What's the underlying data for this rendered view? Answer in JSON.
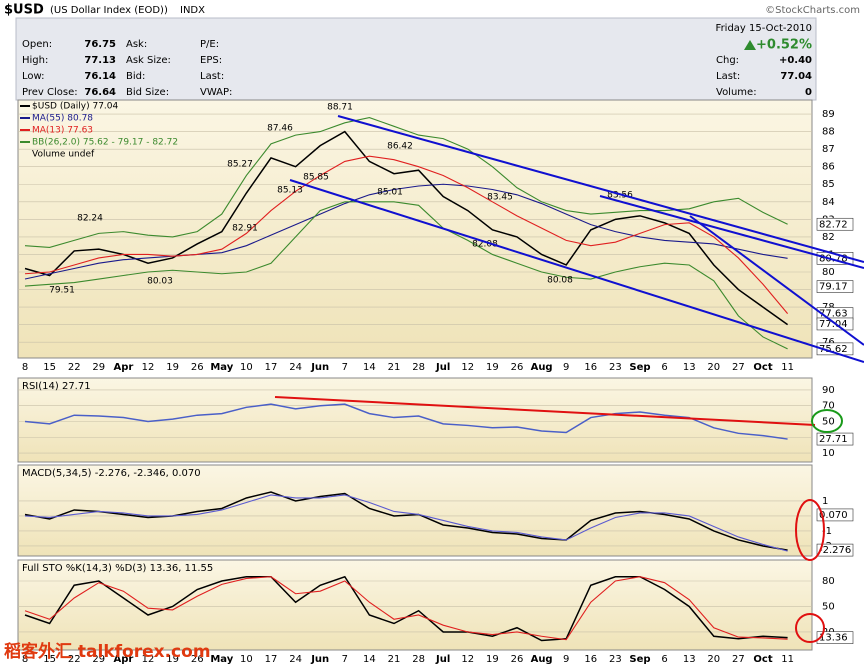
{
  "header": {
    "symbol": "$USD",
    "name": "(US Dollar Index (EOD))",
    "exchange": "INDX",
    "credit": "©StockCharts.com",
    "date": "Friday  15-Oct-2010",
    "change_pct": "+0.52%",
    "col1_labels": [
      "Open:",
      "High:",
      "Low:",
      "Prev Close:"
    ],
    "col1_values": [
      76.75,
      77.13,
      76.14,
      76.64
    ],
    "col2_labels": [
      "Ask:",
      "Ask Size:",
      "Bid:",
      "Bid Size:"
    ],
    "col3_labels": [
      "P/E:",
      "EPS:",
      "Last:",
      "VWAP:"
    ],
    "right_labels": [
      "Chg:",
      "Last:",
      "Volume:"
    ],
    "right_values": [
      "+0.40",
      77.04,
      0
    ]
  },
  "watermark": "稻客外汇 talkforex.com",
  "chart_data": [
    {
      "type": "line",
      "legend_extra": "Volume undef",
      "categories": [
        "8",
        "15",
        "22",
        "29",
        "Apr",
        "12",
        "19",
        "26",
        "May",
        "10",
        "17",
        "24",
        "Jun",
        "7",
        "14",
        "21",
        "28",
        "Jul",
        "12",
        "19",
        "26",
        "Aug",
        "9",
        "16",
        "23",
        "Sep",
        "6",
        "13",
        "20",
        "27",
        "Oct",
        "11"
      ],
      "ylim": [
        75.1,
        89.8
      ],
      "yticks": [
        76,
        77,
        78,
        79,
        80,
        81,
        82,
        83,
        84,
        85,
        86,
        87,
        88,
        89
      ],
      "grid": true,
      "series": [
        {
          "name": "$USD (Daily) 77.04",
          "color": "#000000",
          "values": [
            80.2,
            79.8,
            81.2,
            81.3,
            81.0,
            80.5,
            80.8,
            81.6,
            82.3,
            84.5,
            86.5,
            86.0,
            87.2,
            88.0,
            86.3,
            85.6,
            85.8,
            84.3,
            83.5,
            82.4,
            82.0,
            81.0,
            80.4,
            82.4,
            83.0,
            83.2,
            82.8,
            82.2,
            80.4,
            79.0,
            78.0,
            77.0
          ]
        },
        {
          "name": "MA(55) 80.78",
          "color": "#1a1a8c",
          "values": [
            79.6,
            79.9,
            80.2,
            80.5,
            80.7,
            80.8,
            80.9,
            81.0,
            81.1,
            81.5,
            82.1,
            82.7,
            83.3,
            83.9,
            84.4,
            84.7,
            84.9,
            85.0,
            84.9,
            84.7,
            84.4,
            83.9,
            83.3,
            82.7,
            82.3,
            82.0,
            81.8,
            81.7,
            81.6,
            81.3,
            81.0,
            80.78
          ]
        },
        {
          "name": "MA(13) 77.63",
          "color": "#e02020",
          "values": [
            79.9,
            80.0,
            80.4,
            80.8,
            81.0,
            81.0,
            80.9,
            81.0,
            81.3,
            82.2,
            83.5,
            84.6,
            85.5,
            86.3,
            86.6,
            86.4,
            86.0,
            85.5,
            84.8,
            84.0,
            83.2,
            82.5,
            81.8,
            81.5,
            81.7,
            82.2,
            82.7,
            82.8,
            82.0,
            80.8,
            79.3,
            77.63
          ]
        },
        {
          "name": "BB(26,2.0) 75.62 - 79.17 - 82.72",
          "color": "#3c8a2e",
          "values": [
            81.5,
            81.4,
            81.8,
            82.2,
            82.3,
            82.1,
            82.0,
            82.3,
            83.3,
            85.5,
            87.3,
            87.8,
            88.0,
            88.5,
            88.8,
            88.3,
            87.8,
            87.6,
            87.0,
            86.0,
            84.8,
            84.0,
            83.5,
            83.3,
            83.4,
            83.5,
            83.5,
            83.6,
            84.0,
            84.2,
            83.4,
            82.72
          ]
        },
        {
          "color": "#3c8a2e",
          "values": [
            79.2,
            79.3,
            79.4,
            79.6,
            79.8,
            80.0,
            80.1,
            80.0,
            79.9,
            80.0,
            80.5,
            82.0,
            83.5,
            84.0,
            84.0,
            84.0,
            83.8,
            82.5,
            81.8,
            81.0,
            80.5,
            80.0,
            79.7,
            79.6,
            80.0,
            80.3,
            80.5,
            80.4,
            79.5,
            77.5,
            76.3,
            75.62
          ]
        }
      ],
      "end_labels": [
        82.72,
        80.78,
        79.17,
        77.63,
        77.04,
        75.62
      ],
      "annotations": [
        "88.71",
        "87.46",
        "85.27",
        "85.13",
        "85.85",
        "86.42",
        "85.01",
        "83.45",
        "82.08",
        "83.56",
        "80.08",
        "82.91",
        "82.24",
        "79.51",
        "80.03"
      ]
    },
    {
      "type": "line",
      "legend": "RSI(14) 27.71",
      "ylim": [
        -1.4,
        105.2
      ],
      "yticks": [
        10,
        30,
        50,
        70,
        90
      ],
      "grid": true,
      "series": [
        {
          "color": "#4a5fc8",
          "values": [
            50,
            47,
            58,
            57,
            55,
            50,
            53,
            58,
            60,
            68,
            72,
            66,
            70,
            72,
            60,
            55,
            57,
            47,
            45,
            42,
            43,
            38,
            36,
            55,
            60,
            62,
            58,
            55,
            42,
            35,
            32,
            27.71
          ]
        }
      ],
      "end_labels": [
        27.71
      ]
    },
    {
      "type": "line",
      "legend": "MACD(5,34,5) -2.276, -2.346, 0.070",
      "ylim": [
        -2.67,
        3.4
      ],
      "yticks": [
        1,
        0,
        -1,
        -2
      ],
      "grid": true,
      "series": [
        {
          "color": "#000000",
          "values": [
            0.1,
            -0.2,
            0.4,
            0.3,
            0.1,
            -0.1,
            0.0,
            0.3,
            0.5,
            1.2,
            1.6,
            1.0,
            1.3,
            1.5,
            0.5,
            0.0,
            0.1,
            -0.6,
            -0.8,
            -1.1,
            -1.2,
            -1.5,
            -1.6,
            -0.3,
            0.2,
            0.3,
            0.1,
            -0.2,
            -1.0,
            -1.6,
            -2.0,
            -2.276
          ]
        },
        {
          "color": "#5a5ad0",
          "values": [
            0.0,
            -0.1,
            0.1,
            0.3,
            0.2,
            0.0,
            0.0,
            0.1,
            0.4,
            0.9,
            1.4,
            1.2,
            1.2,
            1.4,
            0.9,
            0.3,
            0.1,
            -0.3,
            -0.7,
            -1.0,
            -1.1,
            -1.4,
            -1.6,
            -0.8,
            -0.1,
            0.2,
            0.2,
            0.0,
            -0.7,
            -1.4,
            -1.9,
            -2.346
          ]
        }
      ],
      "end_labels": [
        {
          "value": 0.07,
          "label": "0.070"
        },
        -2.276
      ]
    },
    {
      "type": "line",
      "legend": "Full STO %K(14,3) %D(3) 13.36, 11.55",
      "ylim": [
        -1.2,
        104.7
      ],
      "yticks": [
        20,
        50,
        80
      ],
      "grid": true,
      "series": [
        {
          "color": "#000000",
          "values": [
            40,
            30,
            75,
            80,
            60,
            40,
            50,
            70,
            80,
            85,
            85,
            55,
            75,
            85,
            40,
            30,
            45,
            20,
            20,
            15,
            25,
            10,
            12,
            75,
            85,
            85,
            70,
            50,
            15,
            12,
            15,
            13.36
          ]
        },
        {
          "color": "#e02020",
          "values": [
            45,
            35,
            60,
            78,
            68,
            48,
            46,
            62,
            76,
            83,
            85,
            65,
            68,
            80,
            55,
            35,
            40,
            28,
            20,
            17,
            20,
            15,
            11,
            55,
            80,
            85,
            78,
            58,
            25,
            14,
            13,
            11.55
          ]
        }
      ],
      "end_labels": [
        13.36
      ]
    }
  ]
}
